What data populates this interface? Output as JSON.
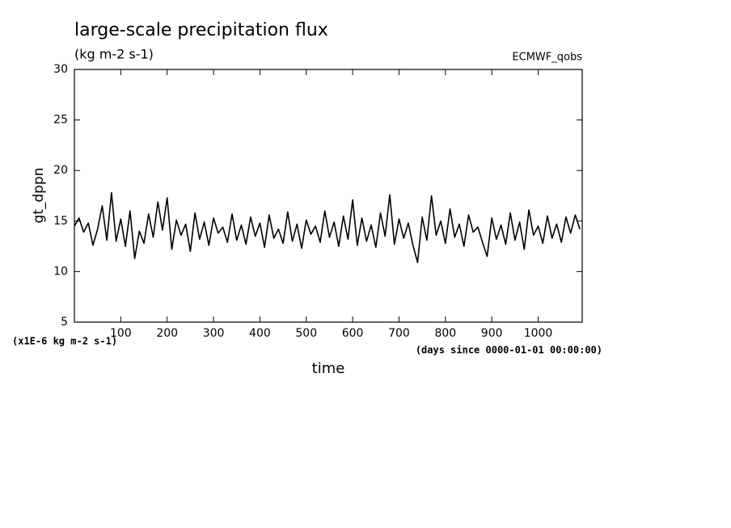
{
  "chart_data": {
    "type": "line",
    "title": "large-scale precipitation flux",
    "subtitle": "(kg m-2 s-1)",
    "source": "ECMWF_qobs",
    "y_label": "gt_dppn",
    "y_unit_note": "(x1E-6 kg m-2 s-1)",
    "x_label": "time",
    "x_unit_note": "(days since 0000-01-01 00:00:00)",
    "xlim": [
      0,
      1095
    ],
    "ylim": [
      5,
      30
    ],
    "xticks": [
      100,
      200,
      300,
      400,
      500,
      600,
      700,
      800,
      900,
      1000
    ],
    "yticks": [
      5,
      10,
      15,
      20,
      25,
      30
    ],
    "color": "#000000",
    "x": [
      0,
      10,
      20,
      30,
      40,
      50,
      60,
      70,
      80,
      90,
      100,
      110,
      120,
      130,
      140,
      150,
      160,
      170,
      180,
      190,
      200,
      210,
      220,
      230,
      240,
      250,
      260,
      270,
      280,
      290,
      300,
      310,
      320,
      330,
      340,
      350,
      360,
      370,
      380,
      390,
      400,
      410,
      420,
      430,
      440,
      450,
      460,
      470,
      480,
      490,
      500,
      510,
      520,
      530,
      540,
      550,
      560,
      570,
      580,
      590,
      600,
      610,
      620,
      630,
      640,
      650,
      660,
      670,
      680,
      690,
      700,
      710,
      720,
      730,
      740,
      750,
      760,
      770,
      780,
      790,
      800,
      810,
      820,
      830,
      840,
      850,
      860,
      870,
      880,
      890,
      900,
      910,
      920,
      930,
      940,
      950,
      960,
      970,
      980,
      990,
      1000,
      1010,
      1020,
      1030,
      1040,
      1050,
      1060,
      1070,
      1080,
      1090
    ],
    "values": [
      14.5,
      15.3,
      13.9,
      14.8,
      12.6,
      14.2,
      16.5,
      13.1,
      17.8,
      13.0,
      15.2,
      12.5,
      16.0,
      11.3,
      14.0,
      12.8,
      15.7,
      13.4,
      16.9,
      14.1,
      17.3,
      12.2,
      15.1,
      13.6,
      14.7,
      12.0,
      15.8,
      13.2,
      14.9,
      12.6,
      15.3,
      13.8,
      14.4,
      12.9,
      15.7,
      13.1,
      14.6,
      12.7,
      15.4,
      13.5,
      14.8,
      12.4,
      15.6,
      13.3,
      14.2,
      12.8,
      15.9,
      13.0,
      14.7,
      12.3,
      15.1,
      13.7,
      14.5,
      12.9,
      16.0,
      13.4,
      14.9,
      12.5,
      15.5,
      13.2,
      17.1,
      12.6,
      15.3,
      13.0,
      14.6,
      12.4,
      15.8,
      13.5,
      17.6,
      12.7,
      15.2,
      13.3,
      14.8,
      12.6,
      10.9,
      15.4,
      13.1,
      17.5,
      13.6,
      15.0,
      12.8,
      16.2,
      13.4,
      14.7,
      12.5,
      15.6,
      13.9,
      14.4,
      12.9,
      11.5,
      15.3,
      13.2,
      14.6,
      12.7,
      15.8,
      13.1,
      14.9,
      12.2,
      16.1,
      13.6,
      14.5,
      12.8,
      15.5,
      13.3,
      14.7,
      12.9,
      15.4,
      13.8,
      15.6,
      14.2
    ]
  }
}
